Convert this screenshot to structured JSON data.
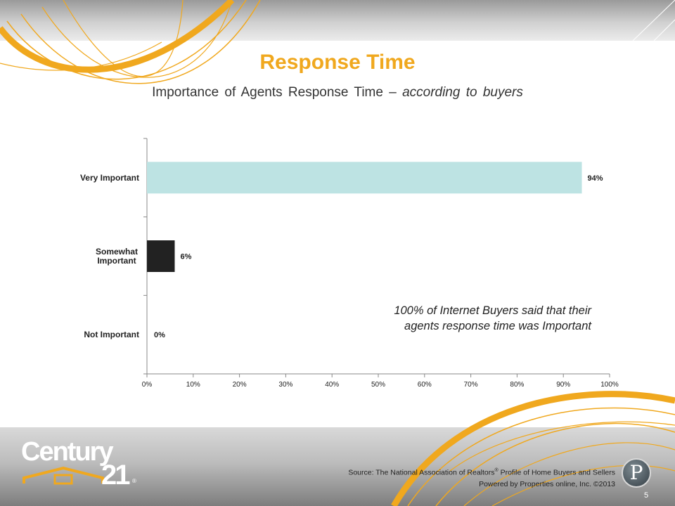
{
  "slide": {
    "title": "Response Time",
    "subtitle_main": "Importance of Agents Response Time – ",
    "subtitle_italic": "according to buyers",
    "callout_line1": "100% of Internet Buyers said that their",
    "callout_line2": "agents response time was Important",
    "source_line1_prefix": "Source: The National Association of Realtors",
    "source_line1_mark": "®",
    "source_line1_suffix": " Profile of Home Buyers and Sellers",
    "source_line2": "Powered by Properties online, Inc. ©2013",
    "page_number": "5",
    "logo_text": "Century",
    "logo_number": "21",
    "logo_registered": "®",
    "badge_letter": "P"
  },
  "colors": {
    "title": "#F0A81E",
    "swoosh": "#F0A81E",
    "bar_very_important": "#BDE3E3",
    "bar_somewhat_important": "#222222",
    "bar_not_important": "#BDE3E3"
  },
  "chart_data": {
    "type": "bar",
    "orientation": "horizontal",
    "categories": [
      "Very Important",
      "Somewhat Important",
      "Not Important"
    ],
    "category_lines": [
      [
        "Very Important"
      ],
      [
        "Somewhat",
        "Important"
      ],
      [
        "Not Important"
      ]
    ],
    "values": [
      94,
      6,
      0
    ],
    "data_labels": [
      "94%",
      "6%",
      "0%"
    ],
    "xlim": [
      0,
      100
    ],
    "xticks": [
      "0%",
      "10%",
      "20%",
      "30%",
      "40%",
      "50%",
      "60%",
      "70%",
      "80%",
      "90%",
      "100%"
    ],
    "grid": false,
    "legend": "none"
  }
}
